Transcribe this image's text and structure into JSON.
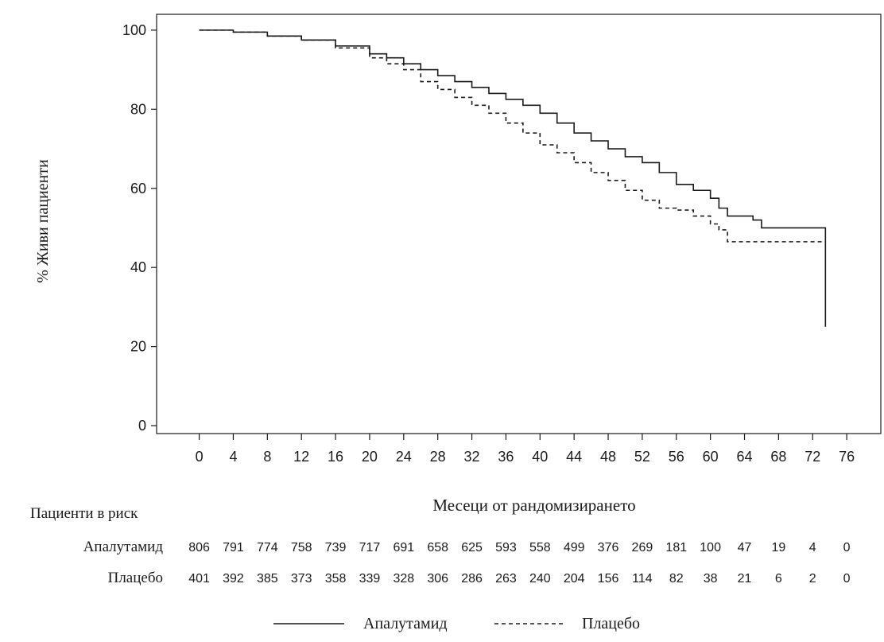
{
  "chart_data": {
    "type": "line",
    "ylabel": "% Живи пациенти",
    "xlabel": "Месеци от рандомизирането",
    "xlim": [
      -5,
      80
    ],
    "ylim": [
      -2,
      104
    ],
    "x_ticks": [
      0,
      4,
      8,
      12,
      16,
      20,
      24,
      28,
      32,
      36,
      40,
      44,
      48,
      52,
      56,
      60,
      64,
      68,
      72,
      76
    ],
    "y_ticks": [
      0,
      20,
      40,
      60,
      80,
      100
    ],
    "grid": false,
    "legend_position": "bottom-center",
    "series": [
      {
        "name": "Апалутамид",
        "line_style": "solid",
        "color": "#1a1a1a",
        "x": [
          0,
          4,
          8,
          12,
          16,
          20,
          22,
          24,
          26,
          28,
          30,
          32,
          34,
          36,
          38,
          40,
          42,
          44,
          46,
          48,
          50,
          52,
          54,
          56,
          58,
          60,
          61,
          62,
          63,
          64,
          65,
          66,
          68,
          70,
          72,
          73.5,
          73.5
        ],
        "y": [
          100,
          99.5,
          98.5,
          97.5,
          96,
          94,
          93,
          91.5,
          90,
          88.5,
          87,
          85.5,
          84,
          82.5,
          81,
          79,
          76.5,
          74,
          72,
          70,
          68,
          66.5,
          64,
          61,
          59.5,
          57.5,
          55,
          53,
          53,
          53,
          52,
          50,
          50,
          50,
          50,
          50,
          25
        ]
      },
      {
        "name": "Плацебо",
        "line_style": "dashed",
        "color": "#1a1a1a",
        "x": [
          0,
          4,
          8,
          12,
          16,
          20,
          22,
          24,
          26,
          28,
          30,
          32,
          34,
          36,
          38,
          40,
          42,
          44,
          46,
          48,
          50,
          52,
          54,
          56,
          58,
          60,
          61,
          62,
          64,
          66,
          68,
          70,
          72,
          73.5
        ],
        "y": [
          100,
          99.5,
          98.5,
          97.5,
          95.5,
          93,
          91.5,
          90,
          87,
          85,
          83,
          81,
          79,
          76.5,
          74,
          71,
          69,
          66.5,
          64,
          62,
          59.5,
          57,
          55,
          54.5,
          53,
          51,
          49.5,
          46.5,
          46.5,
          46.5,
          46.5,
          46.5,
          46.5,
          46.5
        ]
      }
    ],
    "at_risk": {
      "header": "Пациенти в риск",
      "rows": [
        {
          "label": "Апалутамид",
          "values": [
            "806",
            "791",
            "774",
            "758",
            "739",
            "717",
            "691",
            "658",
            "625",
            "593",
            "558",
            "499",
            "376",
            "269",
            "181",
            "100",
            "47",
            "19",
            "4",
            "0"
          ]
        },
        {
          "label": "Плацебо",
          "values": [
            "401",
            "392",
            "385",
            "373",
            "358",
            "339",
            "328",
            "306",
            "286",
            "263",
            "240",
            "204",
            "156",
            "114",
            "82",
            "38",
            "21",
            "6",
            "2",
            "0"
          ]
        }
      ]
    },
    "legend": [
      {
        "label": "Апалутамид",
        "line_style": "solid"
      },
      {
        "label": "Плацебо",
        "line_style": "dashed"
      }
    ]
  }
}
